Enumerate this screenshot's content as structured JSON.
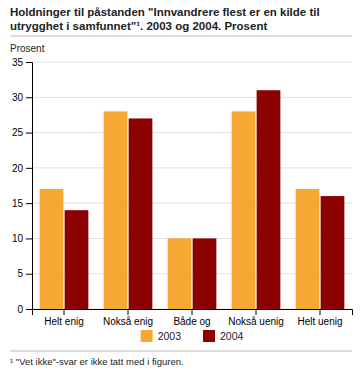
{
  "chart_data": {
    "type": "bar",
    "title": "Holdninger til påstanden \"Innvandrere flest er en kilde til utrygghet i samfunnet\"¹. 2003 og 2004. Prosent",
    "ylabel": "Prosent",
    "categories": [
      "Helt enig",
      "Nokså enig",
      "Både og",
      "Nokså uenig",
      "Helt uenig"
    ],
    "series": [
      {
        "name": "2003",
        "color": "#F5A832",
        "values": [
          17,
          28,
          10,
          28,
          17
        ]
      },
      {
        "name": "2004",
        "color": "#8B0000",
        "values": [
          14,
          27,
          10,
          31,
          16
        ]
      }
    ],
    "ylim": [
      0,
      35
    ],
    "yticks": [
      0,
      5,
      10,
      15,
      20,
      25,
      30,
      35
    ],
    "grid": true,
    "legend": "bottom",
    "annotations": [
      "¹  \"Vet ikke\"-svar er ikke tatt med i figuren."
    ]
  }
}
